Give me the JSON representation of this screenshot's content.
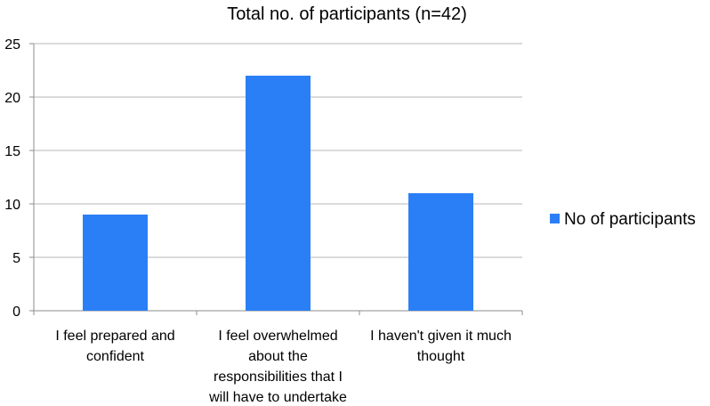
{
  "colors": {
    "bar": "#2b7ff6",
    "grid": "#b7b7b7",
    "axis": "#8c8c8c"
  },
  "chart_data": {
    "type": "bar",
    "title": "Total no. of participants (n=42)",
    "categories": [
      [
        "I feel prepared and",
        "confident"
      ],
      [
        "I feel overwhelmed",
        "about the",
        "responsibilities that I",
        "will have to undertake"
      ],
      [
        "I haven't given it much",
        "thought"
      ]
    ],
    "series": [
      {
        "name": "No of participants",
        "values": [
          9,
          22,
          11
        ]
      }
    ],
    "ylim": [
      0,
      25
    ],
    "yticks": [
      0,
      5,
      10,
      15,
      20,
      25
    ],
    "grid": true,
    "legend": "right"
  }
}
